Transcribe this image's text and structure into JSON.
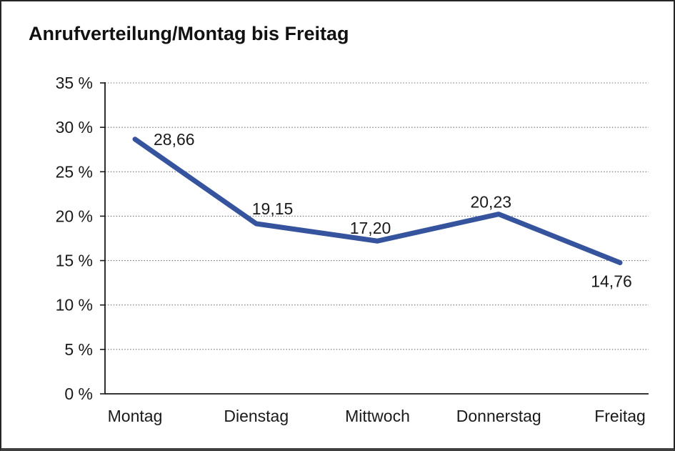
{
  "title": "Anrufverteilung/Montag bis Freitag",
  "colors": {
    "line": "#35549D",
    "axis": "#1a1a1a",
    "grid": "#737373",
    "text": "#1a1a1a",
    "frame_border": "#262626",
    "background": "#ffffff"
  },
  "chart_data": {
    "type": "line",
    "title": "Anrufverteilung/Montag bis Freitag",
    "categories": [
      "Montag",
      "Dienstag",
      "Mittwoch",
      "Donnerstag",
      "Freitag"
    ],
    "values": [
      28.66,
      19.15,
      17.2,
      20.23,
      14.76
    ],
    "value_labels": [
      "28,66",
      "19,15",
      "17,20",
      "20,23",
      "14,76"
    ],
    "series_name": "Anrufverteilung",
    "xlabel": "",
    "ylabel": "",
    "ylim": [
      0,
      35
    ],
    "ytick_step": 5,
    "ytick_labels": [
      "0 %",
      "5 %",
      "10 %",
      "15 %",
      "20 %",
      "25 %",
      "30 %",
      "35 %"
    ],
    "grid": "horizontal-dotted",
    "legend": "none",
    "line_color": "#35549D"
  }
}
